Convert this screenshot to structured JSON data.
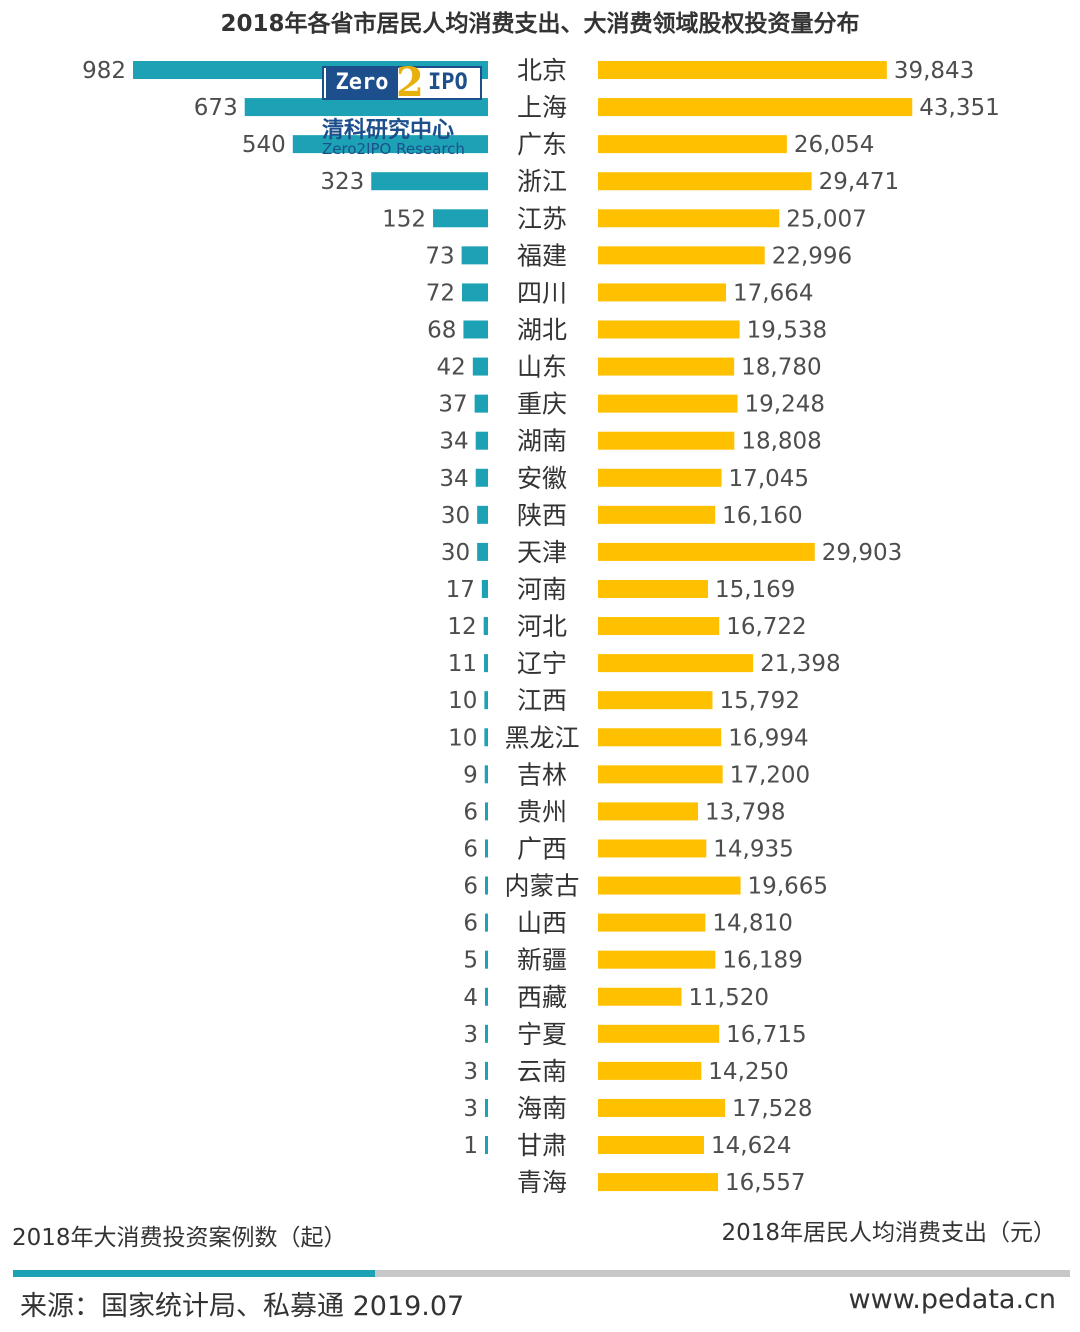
{
  "chart_data": {
    "type": "bar",
    "title": "2018年各省市居民人均消费支出、大消费领域股权投资量分布",
    "categories": [
      "北京",
      "上海",
      "广东",
      "浙江",
      "江苏",
      "福建",
      "四川",
      "湖北",
      "山东",
      "重庆",
      "湖南",
      "安徽",
      "陕西",
      "天津",
      "河南",
      "河北",
      "辽宁",
      "江西",
      "黑龙江",
      "吉林",
      "贵州",
      "广西",
      "内蒙古",
      "山西",
      "新疆",
      "西藏",
      "宁夏",
      "云南",
      "海南",
      "甘肃",
      "青海"
    ],
    "series": [
      {
        "name": "2018年大消费投资案例数（起）",
        "values": [
          982,
          673,
          540,
          323,
          152,
          73,
          72,
          68,
          42,
          37,
          34,
          34,
          30,
          30,
          17,
          12,
          11,
          10,
          10,
          9,
          6,
          6,
          6,
          6,
          5,
          4,
          3,
          3,
          3,
          1,
          null
        ],
        "labels": [
          "982",
          "673",
          "540",
          "323",
          "152",
          "73",
          "72",
          "68",
          "42",
          "37",
          "34",
          "34",
          "30",
          "30",
          "17",
          "12",
          "11",
          "10",
          "10",
          "9",
          "6",
          "6",
          "6",
          "6",
          "5",
          "4",
          "3",
          "3",
          "3",
          "1",
          ""
        ],
        "color": "#1da2b5"
      },
      {
        "name": "2018年居民人均消费支出（元）",
        "values": [
          39843,
          43351,
          26054,
          29471,
          25007,
          22996,
          17664,
          19538,
          18780,
          19248,
          18808,
          17045,
          16160,
          29903,
          15169,
          16722,
          21398,
          15792,
          16994,
          17200,
          13798,
          14935,
          19665,
          14810,
          16189,
          11520,
          16715,
          14250,
          17528,
          14624,
          16557
        ],
        "labels": [
          "39,843",
          "43,351",
          "26,054",
          "29,471",
          "25,007",
          "22,996",
          "17,664",
          "19,538",
          "18,780",
          "19,248",
          "18,808",
          "17,045",
          "16,160",
          "29,903",
          "15,169",
          "16,722",
          "21,398",
          "15,792",
          "16,994",
          "17,200",
          "13,798",
          "14,935",
          "19,665",
          "14,810",
          "16,189",
          "11,520",
          "16,715",
          "14,250",
          "17,528",
          "14,624",
          "16,557"
        ],
        "color": "#ffc000"
      }
    ],
    "xlabel_left": "2018年大消费投资案例数（起）",
    "xlabel_right": "2018年居民人均消费支出（元）",
    "legend": "none",
    "grid": false
  },
  "logo": {
    "left": "Zero",
    "mid": "2",
    "right": "IPO",
    "cn": "清科研究中心",
    "en": "Zero2IPO Research"
  },
  "footer": {
    "source": "来源：国家统计局、私募通 2019.07",
    "site": "www.pedata.cn"
  }
}
